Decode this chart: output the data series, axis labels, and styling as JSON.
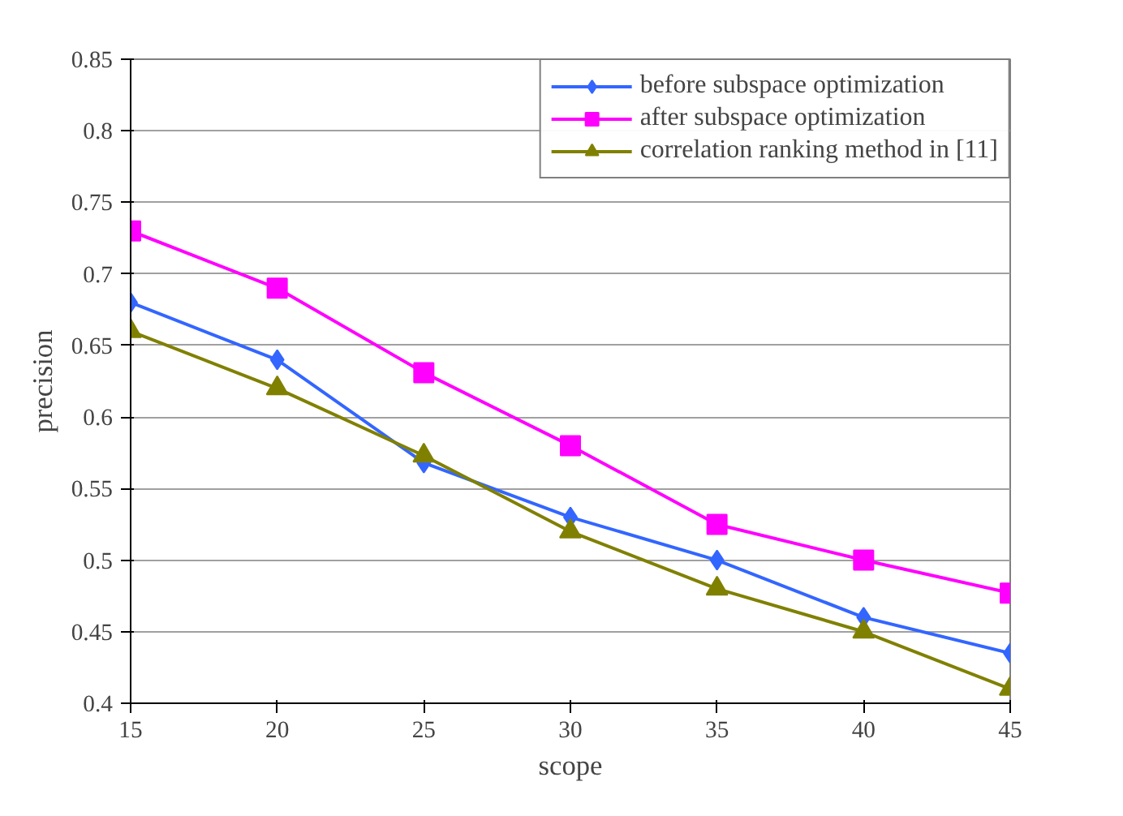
{
  "chart_data": {
    "type": "line",
    "xlabel": "scope",
    "ylabel": "precision",
    "x": [
      15,
      20,
      25,
      30,
      35,
      40,
      45
    ],
    "series": [
      {
        "name": "before subspace optimization",
        "color": "#3366ff",
        "marker": "diamond",
        "values": [
          0.68,
          0.64,
          0.568,
          0.53,
          0.5,
          0.46,
          0.435
        ]
      },
      {
        "name": "after subspace optimization",
        "color": "#ff00ff",
        "marker": "square",
        "values": [
          0.73,
          0.69,
          0.631,
          0.58,
          0.525,
          0.5,
          0.477
        ]
      },
      {
        "name": "correlation ranking method in [11]",
        "color": "#808000",
        "marker": "triangle",
        "values": [
          0.66,
          0.62,
          0.573,
          0.52,
          0.48,
          0.45,
          0.41
        ]
      }
    ],
    "xlim": [
      15,
      45
    ],
    "xticks": [
      15,
      20,
      25,
      30,
      35,
      40,
      45
    ],
    "ylim": [
      0.4,
      0.85
    ],
    "yticks": [
      {
        "value": 0.4,
        "label": "0.4"
      },
      {
        "value": 0.45,
        "label": "0.45"
      },
      {
        "value": 0.5,
        "label": "0.5"
      },
      {
        "value": 0.55,
        "label": "0.55"
      },
      {
        "value": 0.6,
        "label": "0.6"
      },
      {
        "value": 0.65,
        "label": "0.65"
      },
      {
        "value": 0.7,
        "label": "0.7"
      },
      {
        "value": 0.75,
        "label": "0.75"
      },
      {
        "value": 0.8,
        "label": "0.8"
      },
      {
        "value": 0.85,
        "label": "0.85"
      }
    ],
    "grid": "y",
    "legend": "top right",
    "line_style": "solid"
  }
}
